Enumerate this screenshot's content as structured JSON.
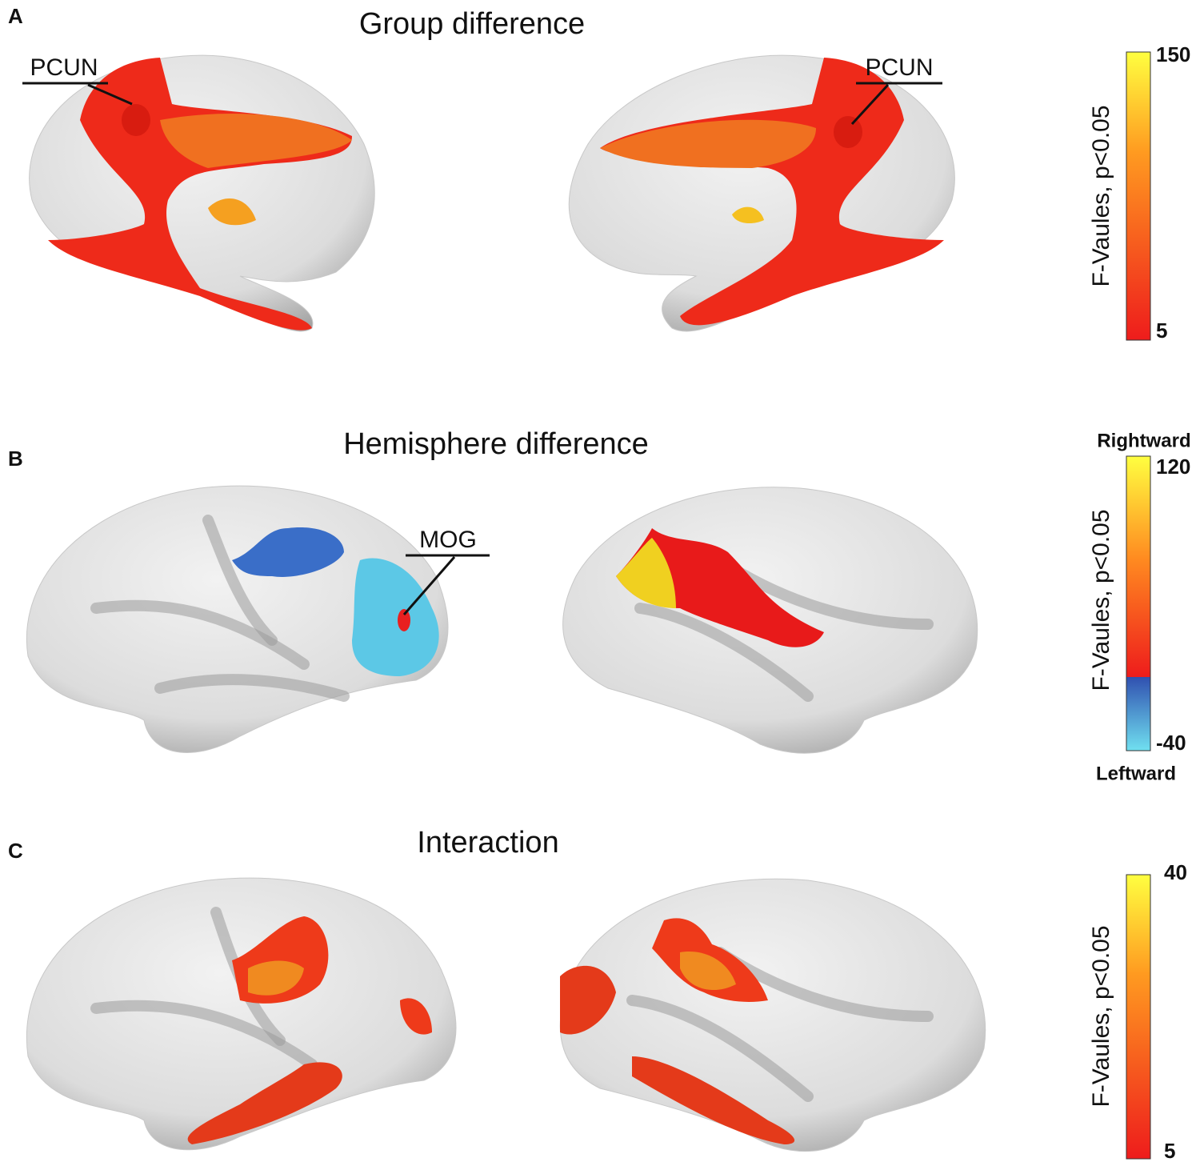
{
  "panels": [
    {
      "label": "A",
      "title": "Group difference",
      "annotations": [
        "PCUN",
        "PCUN"
      ],
      "colorbar": {
        "label": "F-Vaules, p<0.05",
        "max": 150,
        "min": 5
      }
    },
    {
      "label": "B",
      "title": "Hemisphere difference",
      "annotations": [
        "MOG"
      ],
      "colorbar": {
        "label": "F-Vaules, p<0.05",
        "max": 120,
        "min": -40,
        "top_label": "Rightward",
        "bottom_label": "Leftward"
      }
    },
    {
      "label": "C",
      "title": "Interaction",
      "colorbar": {
        "label": "F-Vaules, p<0.05",
        "max": 40,
        "min": 5
      }
    }
  ]
}
